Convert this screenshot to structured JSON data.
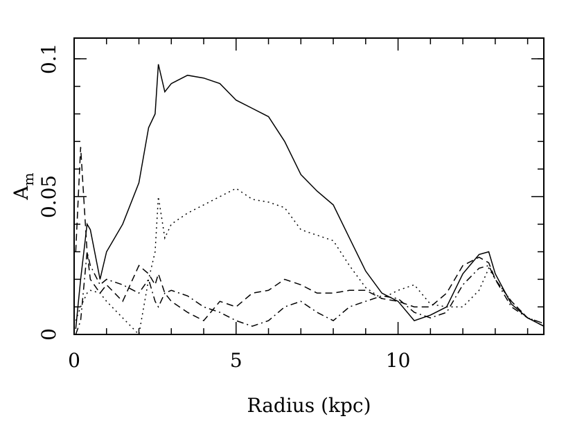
{
  "chart_data": {
    "type": "line",
    "xlabel": "Radius (kpc)",
    "ylabel": "A",
    "ylabel_sub": "m",
    "x": [
      0.05,
      0.2,
      0.4,
      0.5,
      0.8,
      1,
      1.5,
      2,
      2.3,
      2.5,
      2.6,
      2.8,
      3,
      3.5,
      4,
      4.5,
      5,
      5.5,
      6,
      6.5,
      7,
      7.5,
      8,
      8.5,
      9,
      9.5,
      10,
      10.5,
      11,
      11.5,
      12,
      12.5,
      12.8,
      13,
      13.5,
      14,
      14.5
    ],
    "series": [
      {
        "color": "#000000",
        "dash": "none",
        "values": [
          0.002,
          0.02,
          0.04,
          0.038,
          0.02,
          0.03,
          0.04,
          0.055,
          0.075,
          0.08,
          0.098,
          0.088,
          0.091,
          0.094,
          0.093,
          0.091,
          0.085,
          0.082,
          0.079,
          0.07,
          0.058,
          0.052,
          0.047,
          0.035,
          0.023,
          0.015,
          0.012,
          0.005,
          0.007,
          0.01,
          0.022,
          0.029,
          0.03,
          0.022,
          0.011,
          0.006,
          0.003
        ]
      },
      {
        "color": "#000000",
        "dash": "2,5",
        "values": [
          0.005,
          0.01,
          0.015,
          0.016,
          0.015,
          0.012,
          0.006,
          0.0,
          0.02,
          0.03,
          0.05,
          0.035,
          0.04,
          0.044,
          0.047,
          0.05,
          0.053,
          0.049,
          0.048,
          0.046,
          0.038,
          0.036,
          0.034,
          0.025,
          0.017,
          0.013,
          0.016,
          0.018,
          0.011,
          0.01,
          0.01,
          0.016,
          0.024,
          0.02,
          0.012,
          0.006,
          0.004
        ]
      },
      {
        "color": "#000000",
        "dash": "10,6",
        "values": [
          0.03,
          0.068,
          0.03,
          0.02,
          0.015,
          0.018,
          0.012,
          0.025,
          0.022,
          0.018,
          0.022,
          0.015,
          0.012,
          0.008,
          0.005,
          0.012,
          0.01,
          0.015,
          0.016,
          0.02,
          0.018,
          0.015,
          0.015,
          0.016,
          0.016,
          0.013,
          0.012,
          0.01,
          0.01,
          0.015,
          0.025,
          0.028,
          0.026,
          0.02,
          0.012,
          0.006,
          0.004
        ]
      },
      {
        "color": "#000000",
        "dash": "10,5,2,5",
        "values": [
          0.0,
          0.005,
          0.03,
          0.025,
          0.018,
          0.02,
          0.018,
          0.015,
          0.02,
          0.012,
          0.01,
          0.015,
          0.016,
          0.014,
          0.01,
          0.008,
          0.005,
          0.003,
          0.005,
          0.01,
          0.012,
          0.008,
          0.005,
          0.01,
          0.012,
          0.014,
          0.013,
          0.008,
          0.006,
          0.008,
          0.018,
          0.024,
          0.025,
          0.02,
          0.01,
          0.006,
          0.003
        ]
      }
    ],
    "xlim": [
      0,
      14.5
    ],
    "ylim": [
      0,
      0.1075
    ],
    "xticks": [
      0,
      5,
      10
    ],
    "yticks": [
      0,
      0.05,
      0.1
    ],
    "xminorticks": [
      1,
      2,
      3,
      4,
      6,
      7,
      8,
      9,
      11,
      12,
      13,
      14
    ],
    "yminorticks": [
      0.01,
      0.02,
      0.03,
      0.04,
      0.06,
      0.07,
      0.08,
      0.09,
      0.1
    ]
  }
}
